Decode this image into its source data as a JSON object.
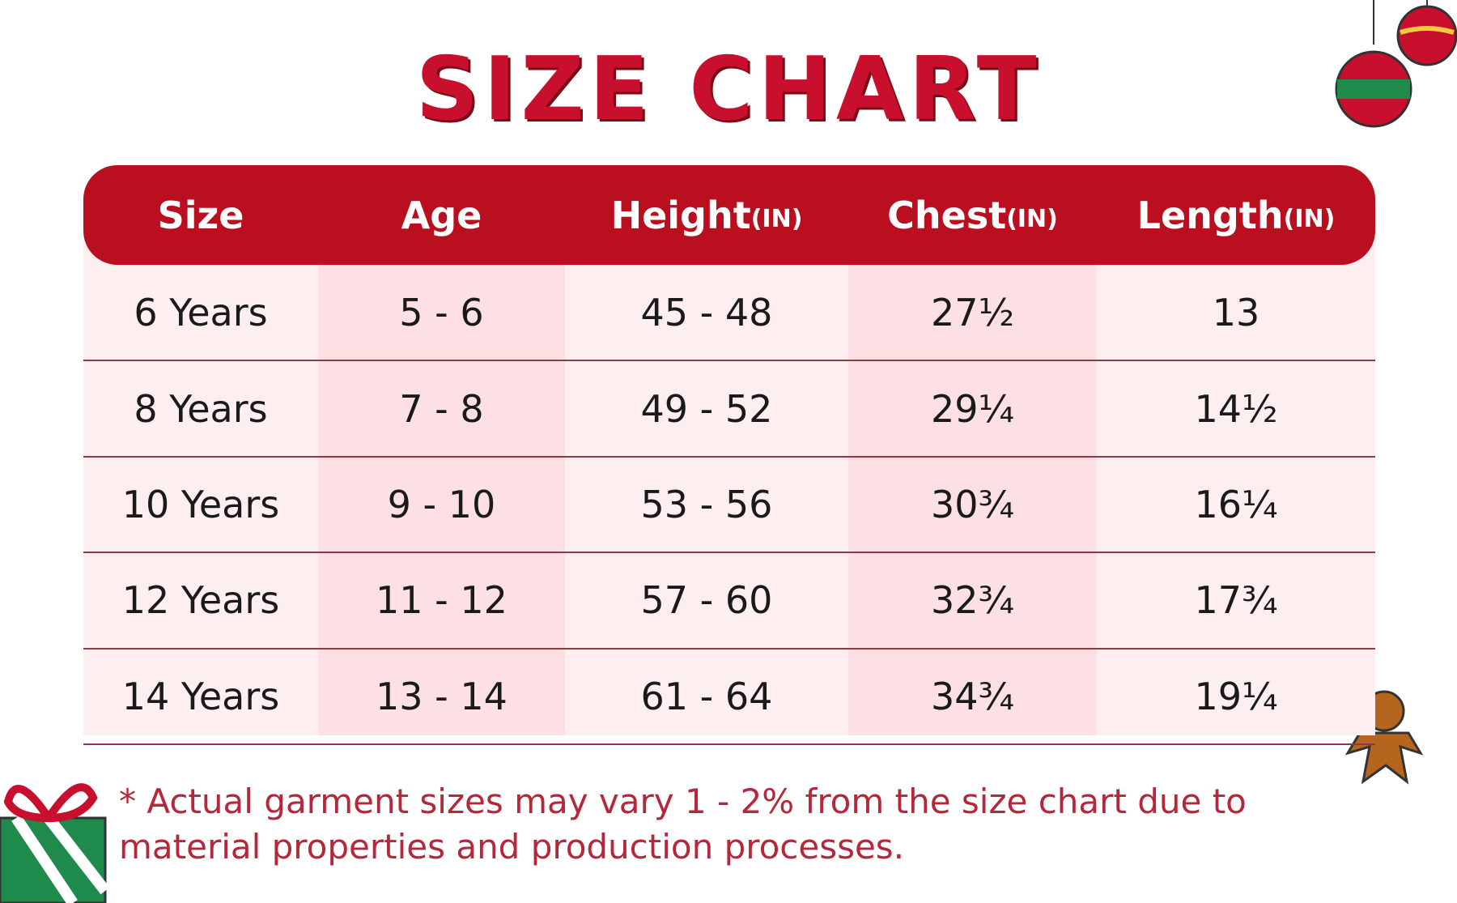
{
  "title": "SIZE CHART",
  "table": {
    "headers": [
      {
        "label": "Size"
      },
      {
        "label": "Age"
      },
      {
        "label": "Height",
        "unit": "(IN)"
      },
      {
        "label": "Chest",
        "unit": "(IN)"
      },
      {
        "label": "Length",
        "unit": "(IN)"
      }
    ],
    "rows": [
      [
        "6 Years",
        "5 - 6",
        "45 - 48",
        "27½",
        "13"
      ],
      [
        "8 Years",
        "7 - 8",
        "49 - 52",
        "29¼",
        "14½"
      ],
      [
        "10 Years",
        "9 - 10",
        "53 - 56",
        "30¾",
        "16¼"
      ],
      [
        "12 Years",
        "11 - 12",
        "57 - 60",
        "32¾",
        "17¾"
      ],
      [
        "14 Years",
        "13 - 14",
        "61 - 64",
        "34¾",
        "19¼"
      ]
    ]
  },
  "note": [
    "* Actual garment sizes may vary 1 - 2% from the size chart due to",
    "material properties and production processes."
  ]
}
